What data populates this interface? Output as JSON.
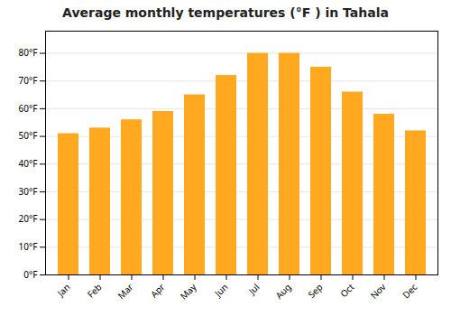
{
  "chart_data": {
    "type": "bar",
    "title": "Average monthly temperatures (°F ) in Tahala",
    "categories": [
      "Jan",
      "Feb",
      "Mar",
      "Apr",
      "May",
      "Jun",
      "Jul",
      "Aug",
      "Sep",
      "Oct",
      "Nov",
      "Dec"
    ],
    "values": [
      51,
      53,
      56,
      59,
      65,
      72,
      80,
      80,
      75,
      66,
      58,
      52
    ],
    "color": "#FFA820",
    "ylim": [
      0,
      88
    ],
    "yticks": [
      {
        "value": 0,
        "label": "0°F"
      },
      {
        "value": 10,
        "label": "10°F"
      },
      {
        "value": 20,
        "label": "20°F"
      },
      {
        "value": 30,
        "label": "30°F"
      },
      {
        "value": 40,
        "label": "40°F"
      },
      {
        "value": 50,
        "label": "50°F"
      },
      {
        "value": 60,
        "label": "60°F"
      },
      {
        "value": 70,
        "label": "70°F"
      },
      {
        "value": 80,
        "label": "80°F"
      }
    ],
    "grid": true
  }
}
